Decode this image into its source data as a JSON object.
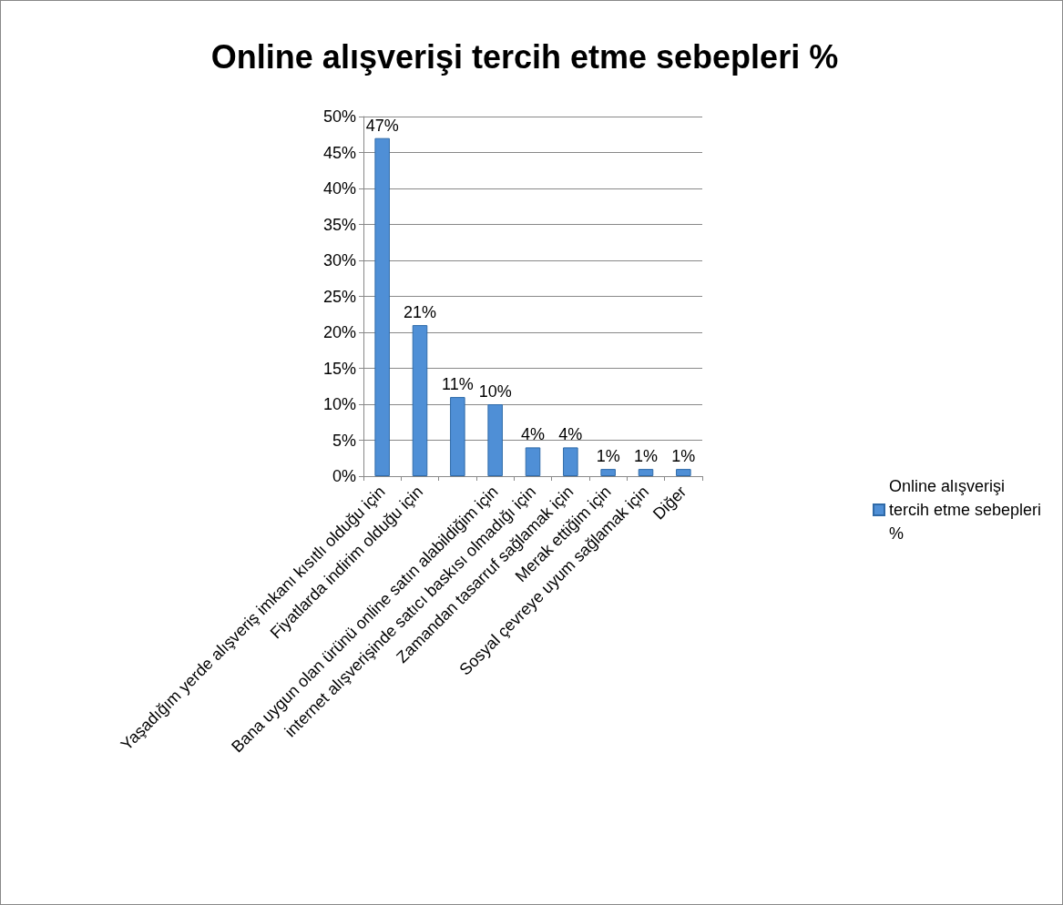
{
  "chart_data": {
    "type": "bar",
    "title": "Online alışverişi tercih etme sebepleri %",
    "categories": [
      "Yaşadığım yerde alışveriş imkanı kısıtlı olduğu için",
      "Fiyatlarda indirim olduğu için",
      null,
      "Bana uygun olan ürünü online satın alabildiğim için",
      "internet alışverişinde satıcı baskısı olmadığı için",
      "Zamandan tasarruf sağlamak için",
      "Merak ettiğim için",
      "Sosyal çevreye uyum sağlamak için",
      "Diğer"
    ],
    "series": [
      {
        "name": "Online alışverişi tercih etme sebepleri %",
        "color": "#4f8fd6",
        "values": [
          47,
          21,
          11,
          10,
          4,
          4,
          1,
          1,
          1
        ],
        "value_labels": [
          "47%",
          "21%",
          "11%",
          "10%",
          "4%",
          "4%",
          "1%",
          "1%",
          "1%"
        ]
      }
    ],
    "ylim": [
      0,
      50
    ],
    "yticks": [
      {
        "value": 0,
        "label": "0%"
      },
      {
        "value": 5,
        "label": "5%"
      },
      {
        "value": 10,
        "label": "10%"
      },
      {
        "value": 15,
        "label": "15%"
      },
      {
        "value": 20,
        "label": "20%"
      },
      {
        "value": 25,
        "label": "25%"
      },
      {
        "value": 30,
        "label": "30%"
      },
      {
        "value": 35,
        "label": "35%"
      },
      {
        "value": 40,
        "label": "40%"
      },
      {
        "value": 45,
        "label": "45%"
      },
      {
        "value": 50,
        "label": "50%"
      }
    ],
    "grid": "y",
    "legend": "right"
  }
}
